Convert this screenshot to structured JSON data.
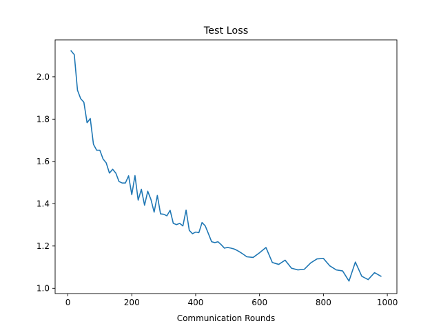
{
  "chart_data": {
    "type": "line",
    "title": "Test Loss",
    "xlabel": "Communication Rounds",
    "ylabel": "",
    "xlim": [
      -40,
      1030
    ],
    "ylim": [
      0.975,
      2.175
    ],
    "xticks": [
      0,
      200,
      400,
      600,
      800,
      1000
    ],
    "xtick_labels": [
      "0",
      "200",
      "400",
      "600",
      "800",
      "1000"
    ],
    "yticks": [
      1.0,
      1.2,
      1.4,
      1.6,
      1.8,
      2.0
    ],
    "ytick_labels": [
      "1.0",
      "1.2",
      "1.4",
      "1.6",
      "1.8",
      "2.0"
    ],
    "grid": false,
    "legend": "none",
    "color": "#1f77b4",
    "series": [
      {
        "x": [
          10,
          20,
          30,
          40,
          50,
          60,
          70,
          80,
          90,
          100,
          110,
          120,
          130,
          140,
          150,
          160,
          170,
          180,
          190,
          200,
          210,
          220,
          230,
          240,
          250,
          260,
          270,
          280,
          290,
          300,
          310,
          320,
          330,
          340,
          350,
          360,
          370,
          380,
          390,
          400,
          410,
          420,
          430,
          440,
          450,
          460,
          470,
          480,
          490,
          500,
          510,
          520,
          530,
          540,
          550,
          560,
          580,
          600,
          620,
          640,
          660,
          680,
          700,
          720,
          740,
          760,
          780,
          800,
          820,
          840,
          860,
          880,
          900,
          920,
          940,
          960,
          980
        ],
        "values": [
          2.123,
          2.105,
          1.937,
          1.897,
          1.88,
          1.783,
          1.803,
          1.681,
          1.653,
          1.653,
          1.612,
          1.593,
          1.545,
          1.563,
          1.545,
          1.505,
          1.498,
          1.498,
          1.532,
          1.443,
          1.533,
          1.417,
          1.468,
          1.393,
          1.459,
          1.42,
          1.36,
          1.439,
          1.352,
          1.35,
          1.343,
          1.369,
          1.307,
          1.301,
          1.307,
          1.295,
          1.37,
          1.274,
          1.258,
          1.266,
          1.263,
          1.311,
          1.295,
          1.258,
          1.22,
          1.216,
          1.22,
          1.206,
          1.19,
          1.193,
          1.19,
          1.186,
          1.179,
          1.17,
          1.16,
          1.149,
          1.146,
          1.168,
          1.193,
          1.122,
          1.113,
          1.133,
          1.095,
          1.087,
          1.09,
          1.12,
          1.139,
          1.141,
          1.106,
          1.087,
          1.082,
          1.034,
          1.124,
          1.057,
          1.041,
          1.074,
          1.057
        ]
      }
    ]
  }
}
